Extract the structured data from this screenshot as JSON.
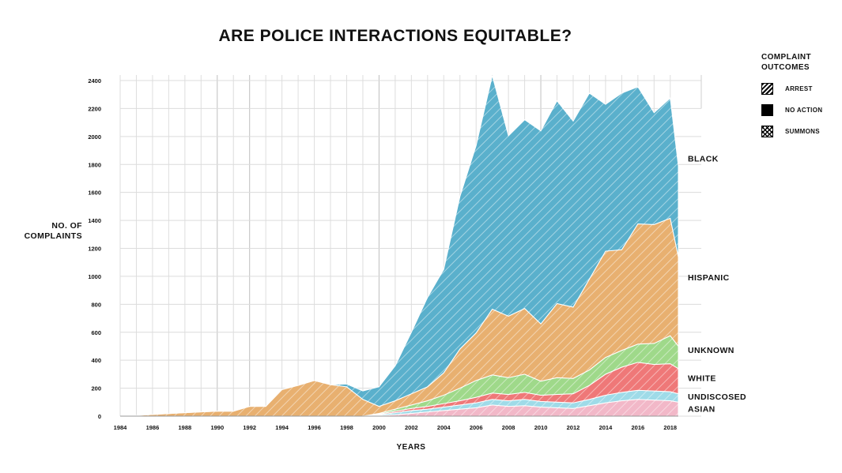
{
  "title": "ARE POLICE INTERACTIONS EQUITABLE?",
  "legend": {
    "title": "COMPLAINT OUTCOMES",
    "items": [
      {
        "label": "ARREST",
        "pattern": "diagonal-hatch"
      },
      {
        "label": "NO ACTION",
        "pattern": "solid"
      },
      {
        "label": "SUMMONS",
        "pattern": "cross-hatch"
      }
    ]
  },
  "chart_data": {
    "type": "area",
    "stacked": true,
    "title": "ARE POLICE INTERACTIONS EQUITABLE?",
    "xlabel": "YEARS",
    "ylabel": "NO. OF COMPLAINTS",
    "xlim": [
      1984,
      2018.5
    ],
    "ylim": [
      0,
      2400
    ],
    "xticks": [
      1984,
      1986,
      1988,
      1990,
      1992,
      1994,
      1996,
      1998,
      2000,
      2002,
      2004,
      2006,
      2008,
      2010,
      2012,
      2014,
      2016,
      2018
    ],
    "yticks": [
      0,
      200,
      400,
      600,
      800,
      1000,
      1200,
      1400,
      1600,
      1800,
      2000,
      2200,
      2400
    ],
    "grid": true,
    "x": [
      1985,
      1986,
      1987,
      1988,
      1989,
      1990,
      1991,
      1992,
      1993,
      1994,
      1995,
      1996,
      1997,
      1998,
      1999,
      2000,
      2001,
      2002,
      2003,
      2004,
      2005,
      2006,
      2007,
      2008,
      2009,
      2010,
      2011,
      2012,
      2013,
      2014,
      2015,
      2016,
      2017,
      2018,
      2018.5
    ],
    "series": [
      {
        "name": "ASIAN",
        "color": "#f2b8c8",
        "values": [
          0,
          0,
          0,
          0,
          0,
          0,
          0,
          0,
          0,
          0,
          0,
          0,
          0,
          0,
          0,
          5,
          10,
          20,
          30,
          40,
          50,
          60,
          80,
          70,
          75,
          65,
          60,
          55,
          75,
          95,
          110,
          120,
          115,
          110,
          100
        ]
      },
      {
        "name": "UNDISCOSED",
        "color": "#9fdbe8",
        "values": [
          0,
          0,
          0,
          0,
          0,
          0,
          0,
          0,
          0,
          0,
          0,
          0,
          0,
          0,
          0,
          5,
          15,
          20,
          20,
          25,
          30,
          35,
          40,
          40,
          45,
          40,
          40,
          40,
          45,
          55,
          60,
          65,
          65,
          65,
          60
        ]
      },
      {
        "name": "WHITE",
        "color": "#ef7878",
        "values": [
          0,
          0,
          0,
          0,
          0,
          0,
          0,
          0,
          0,
          0,
          0,
          0,
          0,
          0,
          0,
          5,
          10,
          15,
          20,
          25,
          30,
          40,
          45,
          45,
          50,
          45,
          55,
          65,
          100,
          150,
          180,
          200,
          190,
          200,
          180
        ]
      },
      {
        "name": "UNKNOWN",
        "color": "#9fd98a",
        "values": [
          0,
          0,
          0,
          0,
          0,
          0,
          0,
          0,
          0,
          0,
          0,
          0,
          0,
          0,
          0,
          5,
          15,
          25,
          40,
          60,
          90,
          120,
          130,
          120,
          130,
          100,
          120,
          110,
          110,
          120,
          120,
          130,
          150,
          200,
          160
        ]
      },
      {
        "name": "HISPANIC",
        "color": "#e8b070",
        "values": [
          5,
          12,
          18,
          25,
          30,
          35,
          35,
          70,
          70,
          190,
          220,
          255,
          225,
          210,
          120,
          50,
          60,
          80,
          100,
          160,
          280,
          340,
          470,
          440,
          470,
          410,
          530,
          510,
          650,
          760,
          720,
          860,
          850,
          840,
          640
        ]
      },
      {
        "name": "BLACK",
        "color": "#5ab0cc",
        "values": [
          0,
          0,
          0,
          0,
          0,
          0,
          0,
          0,
          0,
          0,
          0,
          0,
          0,
          20,
          60,
          140,
          250,
          440,
          640,
          740,
          1090,
          1340,
          1670,
          1290,
          1350,
          1380,
          1450,
          1330,
          1330,
          1050,
          1120,
          980,
          800,
          860,
          650
        ]
      }
    ]
  },
  "labels": {
    "ylabel_line1": "NO. OF",
    "ylabel_line2": "COMPLAINTS",
    "xlabel": "YEARS"
  }
}
